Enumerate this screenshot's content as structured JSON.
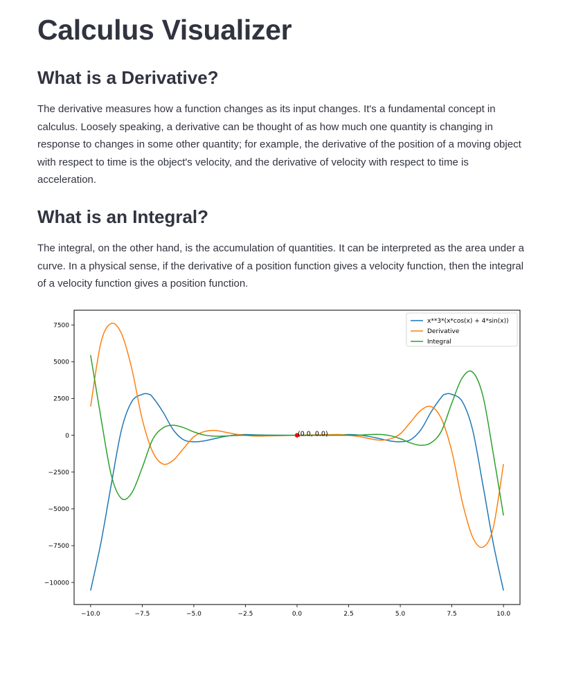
{
  "page": {
    "title": "Calculus Visualizer"
  },
  "sections": [
    {
      "heading": "What is a Derivative?",
      "body": "The derivative measures how a function changes as its input changes. It's a fundamental concept in calculus. Loosely speaking, a derivative can be thought of as how much one quantity is changing in response to changes in some other quantity; for example, the derivative of the position of a moving object with respect to time is the object's velocity, and the derivative of velocity with respect to time is acceleration."
    },
    {
      "heading": "What is an Integral?",
      "body": "The integral, on the other hand, is the accumulation of quantities. It can be interpreted as the area under a curve. In a physical sense, if the derivative of a position function gives a velocity function, then the integral of a velocity function gives a position function."
    }
  ],
  "chart_data": {
    "type": "line",
    "title": "",
    "xlabel": "",
    "ylabel": "",
    "xlim": [
      -10.8,
      10.8
    ],
    "ylim": [
      -11500,
      8500
    ],
    "xticks": [
      -10.0,
      -7.5,
      -5.0,
      -2.5,
      0.0,
      2.5,
      5.0,
      7.5,
      10.0
    ],
    "xtick_labels": [
      "−10.0",
      "−7.5",
      "−5.0",
      "−2.5",
      "0.0",
      "2.5",
      "5.0",
      "7.5",
      "10.0"
    ],
    "yticks": [
      7500,
      5000,
      2500,
      0,
      -2500,
      -5000,
      -7500,
      -10000
    ],
    "ytick_labels": [
      "7500",
      "5000",
      "2500",
      "0",
      "−2500",
      "−5000",
      "−7500",
      "−10000"
    ],
    "grid": false,
    "legend_position": "top-right",
    "series": [
      {
        "name": "x**3*(x*cos(x) + 4*sin(x))",
        "color": "#1f77b4",
        "x": [
          -10,
          -9.5,
          -9,
          -8.5,
          -8,
          -7.5,
          -7.2,
          -7,
          -6.5,
          -6,
          -5.5,
          -5,
          -4.5,
          -4,
          -3.5,
          -3,
          -2.5,
          -2,
          -1,
          0,
          1,
          2,
          2.5,
          3,
          3.5,
          4,
          4.5,
          5,
          5.5,
          6,
          6.5,
          7,
          7.2,
          7.5,
          8,
          8.5,
          9,
          9.5,
          10
        ],
        "y": [
          -10550,
          -7300,
          -3350,
          400,
          2300,
          2780,
          2800,
          2600,
          1600,
          380,
          -300,
          -440,
          -380,
          -230,
          -80,
          20,
          50,
          30,
          5,
          0,
          5,
          30,
          50,
          20,
          -80,
          -230,
          -380,
          -440,
          -300,
          380,
          1600,
          2600,
          2800,
          2780,
          2300,
          400,
          -3350,
          -7300,
          -10550
        ]
      },
      {
        "name": "Derivative",
        "color": "#ff7f0e",
        "x": [
          -10,
          -9.5,
          -9,
          -8.5,
          -8,
          -7.5,
          -7,
          -6.5,
          -6,
          -5.5,
          -5,
          -4.5,
          -4,
          -3.5,
          -3,
          -2.5,
          -2,
          -1,
          0,
          1,
          2,
          2.5,
          3,
          3.5,
          4,
          4.5,
          5,
          5.5,
          6,
          6.5,
          7,
          7.5,
          8,
          8.5,
          9,
          9.5,
          10
        ],
        "y": [
          1950,
          6300,
          7600,
          6900,
          4500,
          1100,
          -1100,
          -1950,
          -1700,
          -900,
          -100,
          250,
          330,
          220,
          80,
          0,
          -50,
          -30,
          0,
          30,
          50,
          0,
          -80,
          -220,
          -330,
          -250,
          100,
          900,
          1700,
          1950,
          1100,
          -1100,
          -4500,
          -6900,
          -7600,
          -6300,
          -1950
        ]
      },
      {
        "name": "Integral",
        "color": "#2ca02c",
        "x": [
          -10,
          -9.5,
          -9,
          -8.5,
          -8,
          -7.5,
          -7,
          -6.5,
          -6,
          -5.5,
          -5,
          -4.5,
          -4,
          -3.5,
          -3,
          -2.5,
          -2,
          -1,
          0,
          1,
          2,
          2.5,
          3,
          3.5,
          4,
          4.5,
          5,
          5.5,
          6,
          6.5,
          7,
          7.5,
          8,
          8.5,
          9,
          9.5,
          10
        ],
        "y": [
          5450,
          1200,
          -2700,
          -4300,
          -3900,
          -2200,
          -300,
          500,
          680,
          520,
          230,
          20,
          -60,
          -50,
          -10,
          0,
          0,
          0,
          0,
          0,
          0,
          0,
          10,
          50,
          60,
          -20,
          -230,
          -520,
          -680,
          -500,
          300,
          2200,
          3900,
          4300,
          2700,
          -1200,
          -5450
        ]
      }
    ],
    "annotations": [
      {
        "x": 0.0,
        "y": 0.0,
        "text": "(0.0, 0.0)",
        "marker_color": "#ff0000"
      }
    ]
  }
}
